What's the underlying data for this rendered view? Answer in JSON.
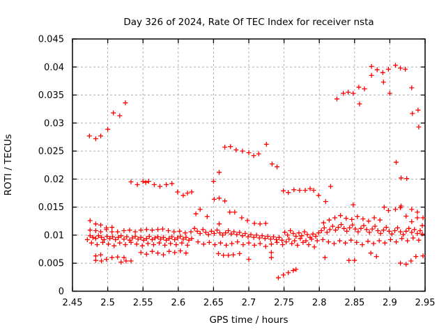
{
  "chart_data": {
    "type": "scatter",
    "title": "Day 326 of 2024, Rate Of TEC Index for receiver nsta",
    "xlabel": "GPS time / hours",
    "ylabel": "ROTI / TECUs",
    "xlim": [
      2.45,
      2.95
    ],
    "ylim": [
      0,
      0.045
    ],
    "xticks": [
      2.45,
      2.5,
      2.55,
      2.6,
      2.65,
      2.7,
      2.75,
      2.8,
      2.85,
      2.9,
      2.95
    ],
    "xtick_labels": [
      "2.45",
      "2.5",
      "2.55",
      "2.6",
      "2.65",
      "2.7",
      "2.75",
      "2.8",
      "2.85",
      "2.9",
      "2.95"
    ],
    "yticks": [
      0,
      0.005,
      0.01,
      0.015,
      0.02,
      0.025,
      0.03,
      0.035,
      0.04,
      0.045
    ],
    "ytick_labels": [
      "0",
      "0.005",
      "0.01",
      "0.015",
      "0.02",
      "0.025",
      "0.03",
      "0.035",
      "0.04",
      "0.045"
    ],
    "grid": true,
    "legend_position": "none",
    "marker": "plus",
    "marker_color": "#ff0000",
    "grid_color": "#b0b0b0",
    "border_color": "#000000",
    "points": [
      [
        2.474,
        0.0277
      ],
      [
        2.483,
        0.0272
      ],
      [
        2.49,
        0.0277
      ],
      [
        2.5,
        0.0289
      ],
      [
        2.508,
        0.0318
      ],
      [
        2.517,
        0.0313
      ],
      [
        2.525,
        0.0336
      ],
      [
        2.533,
        0.0195
      ],
      [
        2.542,
        0.019
      ],
      [
        2.55,
        0.0196
      ],
      [
        2.554,
        0.0194
      ],
      [
        2.558,
        0.0196
      ],
      [
        2.566,
        0.019
      ],
      [
        2.574,
        0.0187
      ],
      [
        2.583,
        0.019
      ],
      [
        2.591,
        0.0192
      ],
      [
        2.599,
        0.0177
      ],
      [
        2.607,
        0.0171
      ],
      [
        2.613,
        0.0175
      ],
      [
        2.619,
        0.0177
      ],
      [
        2.65,
        0.0196
      ],
      [
        2.658,
        0.0212
      ],
      [
        2.666,
        0.0257
      ],
      [
        2.674,
        0.0258
      ],
      [
        2.682,
        0.0252
      ],
      [
        2.691,
        0.025
      ],
      [
        2.7,
        0.0247
      ],
      [
        2.707,
        0.0242
      ],
      [
        2.714,
        0.0245
      ],
      [
        2.725,
        0.0262
      ],
      [
        2.733,
        0.0227
      ],
      [
        2.74,
        0.0222
      ],
      [
        2.651,
        0.0164
      ],
      [
        2.658,
        0.0166
      ],
      [
        2.666,
        0.0161
      ],
      [
        2.749,
        0.0179
      ],
      [
        2.756,
        0.0176
      ],
      [
        2.764,
        0.0181
      ],
      [
        2.772,
        0.018
      ],
      [
        2.78,
        0.018
      ],
      [
        2.787,
        0.0183
      ],
      [
        2.792,
        0.018
      ],
      [
        2.799,
        0.0171
      ],
      [
        2.809,
        0.016
      ],
      [
        2.816,
        0.0187
      ],
      [
        2.825,
        0.0343
      ],
      [
        2.834,
        0.0353
      ],
      [
        2.841,
        0.0355
      ],
      [
        2.848,
        0.0353
      ],
      [
        2.856,
        0.0364
      ],
      [
        2.864,
        0.0361
      ],
      [
        2.857,
        0.0334
      ],
      [
        2.874,
        0.0401
      ],
      [
        2.874,
        0.0385
      ],
      [
        2.882,
        0.0395
      ],
      [
        2.89,
        0.039
      ],
      [
        2.891,
        0.0373
      ],
      [
        2.898,
        0.0396
      ],
      [
        2.9,
        0.0353
      ],
      [
        2.908,
        0.0403
      ],
      [
        2.915,
        0.0398
      ],
      [
        2.922,
        0.0396
      ],
      [
        2.931,
        0.0363
      ],
      [
        2.932,
        0.0317
      ],
      [
        2.94,
        0.0323
      ],
      [
        2.941,
        0.0293
      ],
      [
        2.909,
        0.023
      ],
      [
        2.916,
        0.0202
      ],
      [
        2.924,
        0.0201
      ],
      [
        2.848,
        0.0154
      ],
      [
        2.892,
        0.015
      ],
      [
        2.898,
        0.0144
      ],
      [
        2.908,
        0.0146
      ],
      [
        2.915,
        0.0149
      ],
      [
        2.916,
        0.0152
      ],
      [
        2.931,
        0.0146
      ],
      [
        2.939,
        0.0141
      ],
      [
        2.923,
        0.0134
      ],
      [
        2.931,
        0.0124
      ],
      [
        2.939,
        0.0131
      ],
      [
        2.742,
        0.0024
      ],
      [
        2.749,
        0.0029
      ],
      [
        2.756,
        0.0033
      ],
      [
        2.763,
        0.0037
      ],
      [
        2.767,
        0.0039
      ],
      [
        2.808,
        0.006
      ],
      [
        2.842,
        0.0055
      ],
      [
        2.85,
        0.0055
      ],
      [
        2.873,
        0.0068
      ],
      [
        2.881,
        0.0062
      ],
      [
        2.915,
        0.005
      ],
      [
        2.923,
        0.0048
      ],
      [
        2.93,
        0.0054
      ],
      [
        2.937,
        0.0062
      ],
      [
        2.475,
        0.0126
      ],
      [
        2.483,
        0.012
      ],
      [
        2.49,
        0.0118
      ],
      [
        2.498,
        0.0113
      ],
      [
        2.475,
        0.0109
      ],
      [
        2.483,
        0.0108
      ],
      [
        2.49,
        0.0106
      ],
      [
        2.498,
        0.011
      ],
      [
        2.506,
        0.0114
      ],
      [
        2.506,
        0.0106
      ],
      [
        2.514,
        0.0106
      ],
      [
        2.523,
        0.0108
      ],
      [
        2.531,
        0.0109
      ],
      [
        2.539,
        0.0106
      ],
      [
        2.547,
        0.0109
      ],
      [
        2.555,
        0.011
      ],
      [
        2.563,
        0.0109
      ],
      [
        2.571,
        0.011
      ],
      [
        2.578,
        0.0111
      ],
      [
        2.586,
        0.0108
      ],
      [
        2.594,
        0.0106
      ],
      [
        2.602,
        0.0107
      ],
      [
        2.61,
        0.0104
      ],
      [
        2.618,
        0.0106
      ],
      [
        2.471,
        0.0092
      ],
      [
        2.475,
        0.0099
      ],
      [
        2.479,
        0.0096
      ],
      [
        2.483,
        0.0094
      ],
      [
        2.487,
        0.0099
      ],
      [
        2.491,
        0.0096
      ],
      [
        2.495,
        0.0092
      ],
      [
        2.499,
        0.0098
      ],
      [
        2.503,
        0.0094
      ],
      [
        2.507,
        0.0097
      ],
      [
        2.511,
        0.0092
      ],
      [
        2.515,
        0.0096
      ],
      [
        2.519,
        0.0099
      ],
      [
        2.523,
        0.0093
      ],
      [
        2.527,
        0.0097
      ],
      [
        2.531,
        0.0091
      ],
      [
        2.535,
        0.0095
      ],
      [
        2.539,
        0.0098
      ],
      [
        2.543,
        0.0093
      ],
      [
        2.547,
        0.0096
      ],
      [
        2.551,
        0.0091
      ],
      [
        2.555,
        0.0094
      ],
      [
        2.559,
        0.0098
      ],
      [
        2.563,
        0.0092
      ],
      [
        2.567,
        0.0095
      ],
      [
        2.571,
        0.0097
      ],
      [
        2.575,
        0.0093
      ],
      [
        2.579,
        0.0096
      ],
      [
        2.583,
        0.0091
      ],
      [
        2.587,
        0.0094
      ],
      [
        2.591,
        0.0097
      ],
      [
        2.595,
        0.0092
      ],
      [
        2.599,
        0.0095
      ],
      [
        2.603,
        0.0098
      ],
      [
        2.607,
        0.0093
      ],
      [
        2.611,
        0.0096
      ],
      [
        2.615,
        0.0091
      ],
      [
        2.619,
        0.0094
      ],
      [
        2.477,
        0.0086
      ],
      [
        2.485,
        0.0083
      ],
      [
        2.493,
        0.0087
      ],
      [
        2.501,
        0.0084
      ],
      [
        2.509,
        0.0081
      ],
      [
        2.517,
        0.0086
      ],
      [
        2.525,
        0.0083
      ],
      [
        2.533,
        0.0087
      ],
      [
        2.541,
        0.0084
      ],
      [
        2.549,
        0.0081
      ],
      [
        2.557,
        0.0085
      ],
      [
        2.565,
        0.0083
      ],
      [
        2.573,
        0.0086
      ],
      [
        2.581,
        0.0082
      ],
      [
        2.589,
        0.0085
      ],
      [
        2.597,
        0.0083
      ],
      [
        2.605,
        0.0086
      ],
      [
        2.613,
        0.0082
      ],
      [
        2.483,
        0.0063
      ],
      [
        2.483,
        0.0055
      ],
      [
        2.49,
        0.0065
      ],
      [
        2.491,
        0.0054
      ],
      [
        2.498,
        0.0057
      ],
      [
        2.506,
        0.006
      ],
      [
        2.514,
        0.0061
      ],
      [
        2.519,
        0.0052
      ],
      [
        2.523,
        0.006
      ],
      [
        2.526,
        0.0054
      ],
      [
        2.533,
        0.0054
      ],
      [
        2.547,
        0.0069
      ],
      [
        2.555,
        0.0066
      ],
      [
        2.563,
        0.0071
      ],
      [
        2.571,
        0.0068
      ],
      [
        2.579,
        0.0065
      ],
      [
        2.587,
        0.0071
      ],
      [
        2.595,
        0.0069
      ],
      [
        2.603,
        0.0072
      ],
      [
        2.611,
        0.0068
      ],
      [
        2.625,
        0.0138
      ],
      [
        2.631,
        0.0146
      ],
      [
        2.641,
        0.0133
      ],
      [
        2.658,
        0.012
      ],
      [
        2.673,
        0.0141
      ],
      [
        2.68,
        0.0141
      ],
      [
        2.69,
        0.0131
      ],
      [
        2.698,
        0.0126
      ],
      [
        2.708,
        0.0121
      ],
      [
        2.716,
        0.012
      ],
      [
        2.724,
        0.0121
      ],
      [
        2.623,
        0.0112
      ],
      [
        2.627,
        0.0107
      ],
      [
        2.631,
        0.0103
      ],
      [
        2.635,
        0.011
      ],
      [
        2.639,
        0.0105
      ],
      [
        2.643,
        0.0101
      ],
      [
        2.647,
        0.0107
      ],
      [
        2.651,
        0.0103
      ],
      [
        2.655,
        0.0109
      ],
      [
        2.659,
        0.0104
      ],
      [
        2.663,
        0.01
      ],
      [
        2.667,
        0.0104
      ],
      [
        2.671,
        0.0108
      ],
      [
        2.675,
        0.0102
      ],
      [
        2.679,
        0.0106
      ],
      [
        2.683,
        0.0101
      ],
      [
        2.687,
        0.0105
      ],
      [
        2.691,
        0.0099
      ],
      [
        2.695,
        0.0103
      ],
      [
        2.699,
        0.0097
      ],
      [
        2.703,
        0.0101
      ],
      [
        2.707,
        0.0096
      ],
      [
        2.711,
        0.01
      ],
      [
        2.715,
        0.0095
      ],
      [
        2.719,
        0.0099
      ],
      [
        2.723,
        0.0094
      ],
      [
        2.727,
        0.0098
      ],
      [
        2.731,
        0.0093
      ],
      [
        2.735,
        0.0097
      ],
      [
        2.739,
        0.0092
      ],
      [
        2.743,
        0.0096
      ],
      [
        2.747,
        0.0091
      ],
      [
        2.628,
        0.0088
      ],
      [
        2.636,
        0.0084
      ],
      [
        2.644,
        0.0087
      ],
      [
        2.652,
        0.0083
      ],
      [
        2.66,
        0.0086
      ],
      [
        2.668,
        0.0082
      ],
      [
        2.676,
        0.0085
      ],
      [
        2.684,
        0.0088
      ],
      [
        2.692,
        0.0083
      ],
      [
        2.7,
        0.0086
      ],
      [
        2.708,
        0.0082
      ],
      [
        2.716,
        0.0085
      ],
      [
        2.724,
        0.008
      ],
      [
        2.732,
        0.0084
      ],
      [
        2.74,
        0.0087
      ],
      [
        2.748,
        0.0083
      ],
      [
        2.657,
        0.0067
      ],
      [
        2.664,
        0.0064
      ],
      [
        2.671,
        0.0064
      ],
      [
        2.678,
        0.0065
      ],
      [
        2.687,
        0.0067
      ],
      [
        2.7,
        0.0057
      ],
      [
        2.732,
        0.0069
      ],
      [
        2.732,
        0.006
      ],
      [
        2.751,
        0.0105
      ],
      [
        2.755,
        0.01
      ],
      [
        2.759,
        0.0108
      ],
      [
        2.763,
        0.0103
      ],
      [
        2.767,
        0.0098
      ],
      [
        2.771,
        0.0104
      ],
      [
        2.775,
        0.0099
      ],
      [
        2.779,
        0.0106
      ],
      [
        2.783,
        0.0101
      ],
      [
        2.787,
        0.0096
      ],
      [
        2.791,
        0.0102
      ],
      [
        2.795,
        0.0098
      ],
      [
        2.799,
        0.0104
      ],
      [
        2.753,
        0.0088
      ],
      [
        2.761,
        0.0085
      ],
      [
        2.769,
        0.0082
      ],
      [
        2.777,
        0.0087
      ],
      [
        2.785,
        0.0083
      ],
      [
        2.793,
        0.0079
      ],
      [
        2.757,
        0.0093
      ],
      [
        2.765,
        0.009
      ],
      [
        2.773,
        0.0094
      ],
      [
        2.781,
        0.009
      ],
      [
        2.789,
        0.0093
      ],
      [
        2.797,
        0.009
      ],
      [
        2.803,
        0.0108
      ],
      [
        2.807,
        0.0113
      ],
      [
        2.811,
        0.0105
      ],
      [
        2.815,
        0.011
      ],
      [
        2.819,
        0.0116
      ],
      [
        2.823,
        0.0109
      ],
      [
        2.827,
        0.0114
      ],
      [
        2.831,
        0.0119
      ],
      [
        2.835,
        0.0112
      ],
      [
        2.839,
        0.0107
      ],
      [
        2.843,
        0.0113
      ],
      [
        2.847,
        0.0118
      ],
      [
        2.851,
        0.0111
      ],
      [
        2.855,
        0.0106
      ],
      [
        2.859,
        0.0112
      ],
      [
        2.863,
        0.0117
      ],
      [
        2.867,
        0.011
      ],
      [
        2.871,
        0.0105
      ],
      [
        2.875,
        0.0111
      ],
      [
        2.879,
        0.0116
      ],
      [
        2.883,
        0.0108
      ],
      [
        2.887,
        0.0103
      ],
      [
        2.891,
        0.0109
      ],
      [
        2.895,
        0.0114
      ],
      [
        2.899,
        0.0107
      ],
      [
        2.903,
        0.0102
      ],
      [
        2.907,
        0.0108
      ],
      [
        2.911,
        0.0113
      ],
      [
        2.915,
        0.0106
      ],
      [
        2.919,
        0.0101
      ],
      [
        2.923,
        0.0107
      ],
      [
        2.927,
        0.0112
      ],
      [
        2.931,
        0.0105
      ],
      [
        2.935,
        0.011
      ],
      [
        2.939,
        0.0103
      ],
      [
        2.943,
        0.0108
      ],
      [
        2.806,
        0.0122
      ],
      [
        2.814,
        0.0127
      ],
      [
        2.822,
        0.0131
      ],
      [
        2.83,
        0.0135
      ],
      [
        2.838,
        0.013
      ],
      [
        2.846,
        0.0128
      ],
      [
        2.854,
        0.0133
      ],
      [
        2.862,
        0.0129
      ],
      [
        2.87,
        0.0125
      ],
      [
        2.878,
        0.0131
      ],
      [
        2.886,
        0.0127
      ],
      [
        2.805,
        0.0092
      ],
      [
        2.813,
        0.0088
      ],
      [
        2.821,
        0.0085
      ],
      [
        2.829,
        0.009
      ],
      [
        2.837,
        0.0086
      ],
      [
        2.845,
        0.0091
      ],
      [
        2.853,
        0.0087
      ],
      [
        2.861,
        0.0083
      ],
      [
        2.869,
        0.0089
      ],
      [
        2.877,
        0.0085
      ],
      [
        2.885,
        0.009
      ],
      [
        2.893,
        0.0086
      ],
      [
        2.901,
        0.0092
      ],
      [
        2.909,
        0.0088
      ],
      [
        2.917,
        0.0094
      ],
      [
        2.925,
        0.009
      ],
      [
        2.933,
        0.0095
      ],
      [
        2.941,
        0.0091
      ],
      [
        2.946,
        0.0117
      ],
      [
        2.947,
        0.0131
      ],
      [
        2.946,
        0.0102
      ],
      [
        2.947,
        0.0063
      ]
    ]
  }
}
